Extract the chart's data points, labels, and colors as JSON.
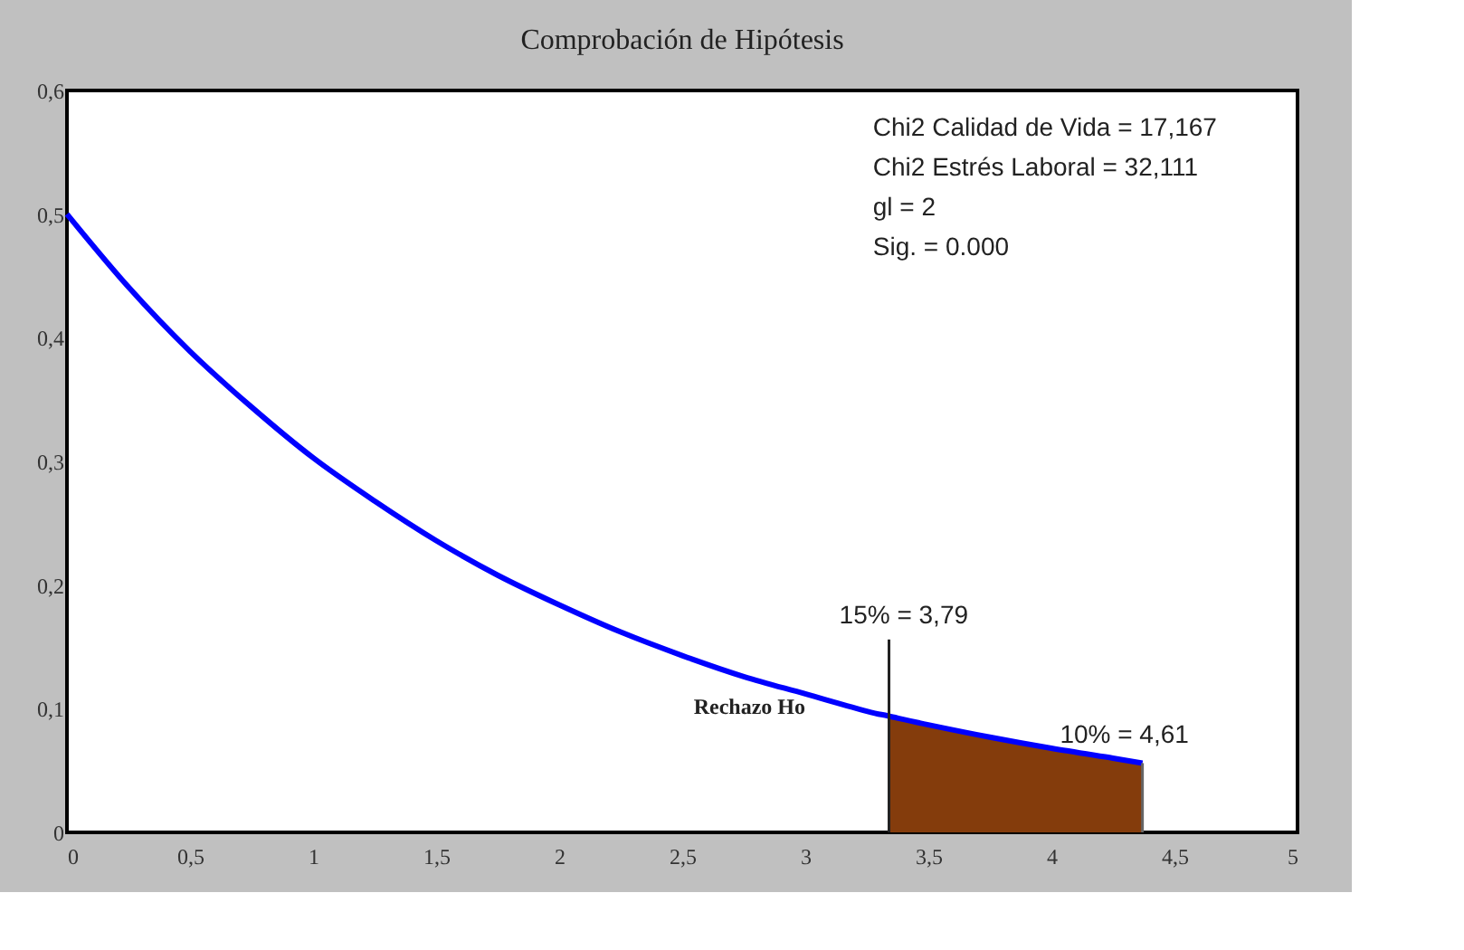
{
  "chart_data": {
    "type": "line",
    "title": "Comprobación de Hipótesis",
    "x": [
      0,
      0.25,
      0.5,
      0.75,
      1,
      1.25,
      1.5,
      1.75,
      2,
      2.25,
      2.5,
      2.75,
      3,
      3.25,
      3.34,
      3.5,
      3.75,
      4,
      4.25,
      4.37
    ],
    "series": [
      {
        "color": "#0000ff",
        "values": [
          0.5,
          0.441,
          0.389,
          0.344,
          0.303,
          0.268,
          0.236,
          0.208,
          0.184,
          0.162,
          0.143,
          0.126,
          0.112,
          0.098,
          0.094,
          0.087,
          0.077,
          0.068,
          0.06,
          0.056
        ]
      },
      {
        "type": "area",
        "color": "#843c0c",
        "x": [
          3.34,
          3.5,
          3.75,
          4,
          4.25,
          4.37
        ],
        "values": [
          0.094,
          0.087,
          0.077,
          0.068,
          0.06,
          0.056
        ]
      }
    ],
    "xlim": [
      0,
      5
    ],
    "ylim": [
      0,
      0.6
    ],
    "xticks": [
      0,
      {
        "value": 0.5,
        "label": "0,5"
      },
      1,
      {
        "value": 1.5,
        "label": "1,5"
      },
      2,
      {
        "value": 2.5,
        "label": "2,5"
      },
      3,
      {
        "value": 3.5,
        "label": "3,5"
      },
      4,
      {
        "value": 4.5,
        "label": "4,5"
      },
      5
    ],
    "yticks": [
      0,
      {
        "value": 0.1,
        "label": "0,1"
      },
      {
        "value": 0.2,
        "label": "0,2"
      },
      {
        "value": 0.3,
        "label": "0,3"
      },
      {
        "value": 0.4,
        "label": "0,4"
      },
      {
        "value": 0.5,
        "label": "0,5"
      },
      {
        "value": 0.6,
        "label": "0,6"
      }
    ],
    "grid": false,
    "ref_lines": [
      {
        "axis": "x",
        "value": 3.34,
        "color": "#222222"
      }
    ],
    "annotations": [
      "Chi2 Calidad de Vida = 17,167",
      "Chi2 Estrés Laboral = 32,111",
      "gl = 2",
      "Sig. = 0.000",
      "Rechazo Ho",
      "15% = 3,79",
      {
        "text": "10% = 4,61",
        "x": 4.37,
        "y": 0.056
      }
    ]
  }
}
